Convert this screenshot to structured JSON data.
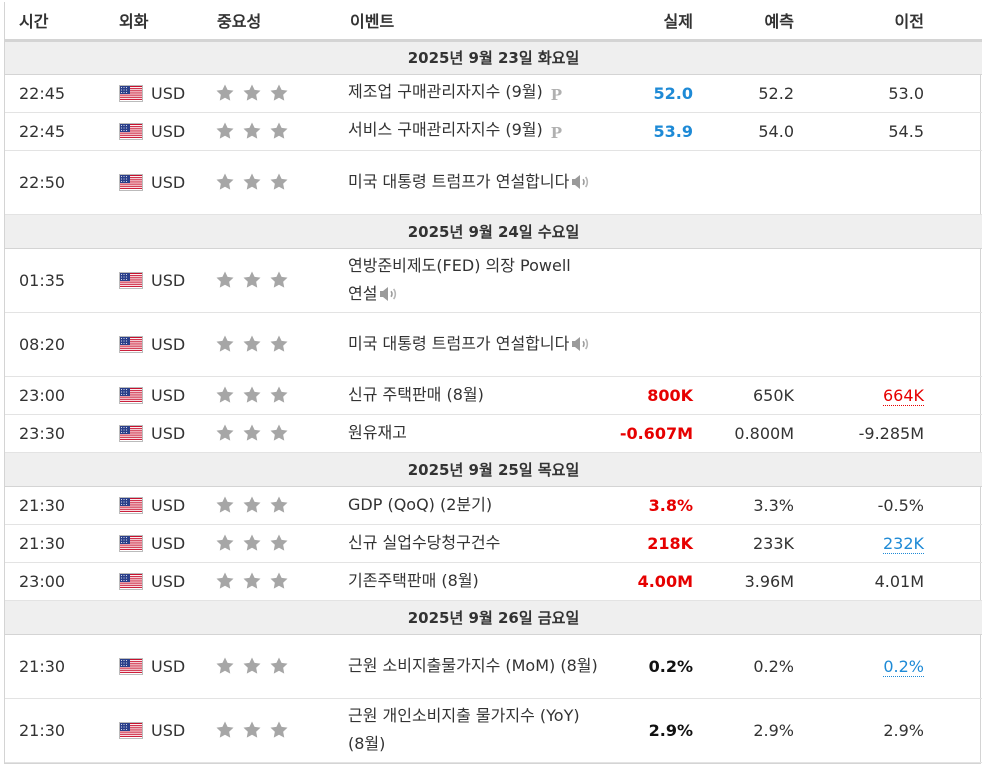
{
  "header": {
    "time": "시간",
    "currency": "외화",
    "importance": "중요성",
    "event": "이벤트",
    "actual": "실제",
    "forecast": "예측",
    "previous": "이전"
  },
  "icons": {
    "star": "star-icon",
    "flag": "us-flag-icon",
    "preliminary": "P",
    "speech": "speaker-icon"
  },
  "colors": {
    "positive": "#1e8ad6",
    "negative": "#e60000",
    "star": "#a6a6a6",
    "day_bg": "#efefef"
  },
  "days": [
    {
      "label": "2025년 9월 23일 화요일",
      "events": [
        {
          "time": "22:45",
          "currency": "USD",
          "stars": 3,
          "name": "제조업 구매관리자지수 (9월)",
          "icon": "P",
          "actual": "52.0",
          "actual_style": "blue",
          "forecast": "52.2",
          "previous": "53.0",
          "prev_style": "",
          "tall": false
        },
        {
          "time": "22:45",
          "currency": "USD",
          "stars": 3,
          "name": "서비스 구매관리자지수 (9월)",
          "icon": "P",
          "actual": "53.9",
          "actual_style": "blue",
          "forecast": "54.0",
          "previous": "54.5",
          "prev_style": "",
          "tall": false
        },
        {
          "time": "22:50",
          "currency": "USD",
          "stars": 3,
          "name": "미국 대통령 트럼프가 연설합니다",
          "icon": "speech",
          "actual": "",
          "actual_style": "",
          "forecast": "",
          "previous": "",
          "prev_style": "",
          "tall": true
        }
      ]
    },
    {
      "label": "2025년 9월 24일 수요일",
      "events": [
        {
          "time": "01:35",
          "currency": "USD",
          "stars": 3,
          "name": "연방준비제도(FED) 의장 Powell 연설",
          "icon": "speech",
          "actual": "",
          "actual_style": "",
          "forecast": "",
          "previous": "",
          "prev_style": "",
          "tall": true
        },
        {
          "time": "08:20",
          "currency": "USD",
          "stars": 3,
          "name": "미국 대통령 트럼프가 연설합니다",
          "icon": "speech",
          "actual": "",
          "actual_style": "",
          "forecast": "",
          "previous": "",
          "prev_style": "",
          "tall": true
        },
        {
          "time": "23:00",
          "currency": "USD",
          "stars": 3,
          "name": "신규 주택판매 (8월)",
          "icon": "",
          "actual": "800K",
          "actual_style": "red",
          "forecast": "650K",
          "previous": "664K",
          "prev_style": "rev-red",
          "tall": false
        },
        {
          "time": "23:30",
          "currency": "USD",
          "stars": 3,
          "name": "원유재고",
          "icon": "",
          "actual": "-0.607M",
          "actual_style": "red",
          "forecast": "0.800M",
          "previous": "-9.285M",
          "prev_style": "",
          "tall": false
        }
      ]
    },
    {
      "label": "2025년 9월 25일 목요일",
      "events": [
        {
          "time": "21:30",
          "currency": "USD",
          "stars": 3,
          "name": "GDP (QoQ) (2분기)",
          "icon": "",
          "actual": "3.8%",
          "actual_style": "red",
          "forecast": "3.3%",
          "previous": "-0.5%",
          "prev_style": "",
          "tall": false
        },
        {
          "time": "21:30",
          "currency": "USD",
          "stars": 3,
          "name": "신규 실업수당청구건수",
          "icon": "",
          "actual": "218K",
          "actual_style": "red",
          "forecast": "233K",
          "previous": "232K",
          "prev_style": "rev-blue",
          "tall": false
        },
        {
          "time": "23:00",
          "currency": "USD",
          "stars": 3,
          "name": "기존주택판매 (8월)",
          "icon": "",
          "actual": "4.00M",
          "actual_style": "red",
          "forecast": "3.96M",
          "previous": "4.01M",
          "prev_style": "",
          "tall": false
        }
      ]
    },
    {
      "label": "2025년 9월 26일 금요일",
      "events": [
        {
          "time": "21:30",
          "currency": "USD",
          "stars": 3,
          "name": "근원 소비지출물가지수 (MoM) (8월)",
          "icon": "",
          "actual": "0.2%",
          "actual_style": "black",
          "forecast": "0.2%",
          "previous": "0.2%",
          "prev_style": "rev-blue",
          "tall": true
        },
        {
          "time": "21:30",
          "currency": "USD",
          "stars": 3,
          "name": "근원 개인소비지출 물가지수 (YoY) (8월)",
          "icon": "",
          "actual": "2.9%",
          "actual_style": "black",
          "forecast": "2.9%",
          "previous": "2.9%",
          "prev_style": "",
          "tall": true
        }
      ]
    }
  ]
}
